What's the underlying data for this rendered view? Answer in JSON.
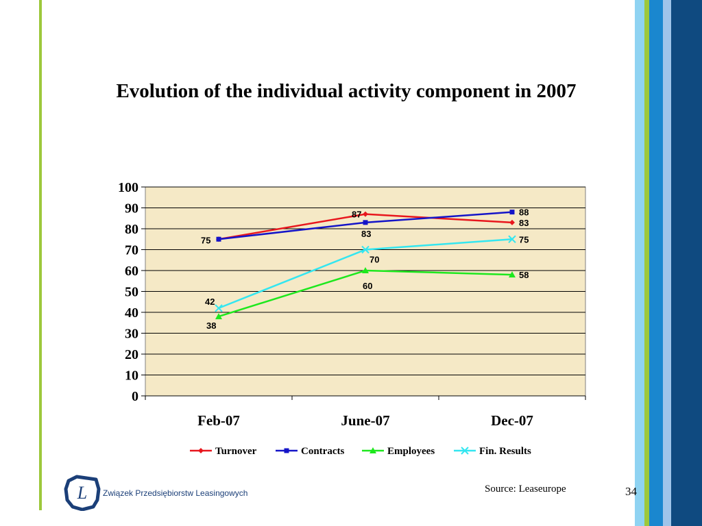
{
  "slide": {
    "title": "Evolution of the individual activity component in 2007",
    "source": "Source: Leaseurope",
    "page_number": "34",
    "org_name": "Związek Przedsiębiorstw Leasingowych",
    "logo_letter": "L"
  },
  "colors": {
    "left_rule": "#9dc83c",
    "stripes": [
      "#8fd3f2",
      "#9dc83c",
      "#1a87cf",
      "#9fc4ea",
      "#0f4a80"
    ],
    "plot_background": "#f5e9c6",
    "logo": "#1b3f78"
  },
  "chart_data": {
    "type": "line",
    "title": "",
    "categories": [
      "Feb-07",
      "June-07",
      "Dec-07"
    ],
    "ylim": [
      0,
      100
    ],
    "yticks": [
      0,
      10,
      20,
      30,
      40,
      50,
      60,
      70,
      80,
      90,
      100
    ],
    "grid": true,
    "legend_position": "bottom",
    "series": [
      {
        "name": "Turnover",
        "values": [
          75,
          87,
          83
        ],
        "color": "#e8161d",
        "marker": "diamond"
      },
      {
        "name": "Contracts",
        "values": [
          75,
          83,
          88
        ],
        "color": "#1414c8",
        "marker": "square"
      },
      {
        "name": "Employees",
        "values": [
          38,
          60,
          58
        ],
        "color": "#1de81d",
        "marker": "triangle"
      },
      {
        "name": "Fin. Results",
        "values": [
          42,
          70,
          75
        ],
        "color": "#33e6f0",
        "marker": "x"
      }
    ]
  }
}
